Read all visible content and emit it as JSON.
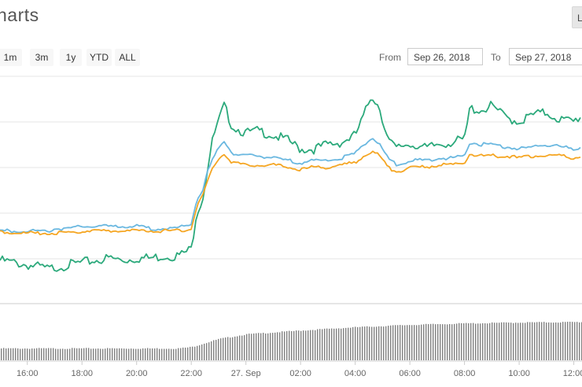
{
  "header": {
    "title": "harts",
    "corner_button": "Li"
  },
  "range_buttons": [
    "1m",
    "3m",
    "1y",
    "YTD",
    "ALL"
  ],
  "date_range": {
    "from_label": "From",
    "from_value": "Sep 26, 2018",
    "to_label": "To",
    "to_value": "Sep 27, 2018"
  },
  "colors": {
    "green": "#2ba97b",
    "blue": "#6bb8e0",
    "orange": "#f5a623",
    "volume": "#808080",
    "grid": "#e6e6e6"
  },
  "chart_data": {
    "type": "line",
    "title": "",
    "xlabel": "",
    "ylabel": "",
    "x_tick_labels": [
      "16:00",
      "18:00",
      "20:00",
      "22:00",
      "27. Sep",
      "02:00",
      "04:00",
      "06:00",
      "08:00",
      "10:00",
      "12:00"
    ],
    "x_hours": [
      -6,
      -4,
      -2,
      0,
      2,
      4,
      6,
      8,
      10,
      12,
      14
    ],
    "xlim_hours": [
      -7.0,
      14.3
    ],
    "ylim": [
      0,
      100
    ],
    "grid": true,
    "series": [
      {
        "color_key": "green",
        "points": [
          [
            -7,
            19
          ],
          [
            -6.5,
            18
          ],
          [
            -6,
            17
          ],
          [
            -5.5,
            16
          ],
          [
            -5.2,
            15
          ],
          [
            -5,
            16
          ],
          [
            -4.5,
            17
          ],
          [
            -4,
            18
          ],
          [
            -3.5,
            19
          ],
          [
            -3,
            20
          ],
          [
            -2.5,
            19
          ],
          [
            -2,
            20
          ],
          [
            -1.5,
            20
          ],
          [
            -1,
            21
          ],
          [
            -0.5,
            21
          ],
          [
            -0.3,
            22
          ],
          [
            0,
            24
          ],
          [
            0.2,
            41
          ],
          [
            0.4,
            45
          ],
          [
            0.6,
            60
          ],
          [
            0.8,
            73
          ],
          [
            1.0,
            80
          ],
          [
            1.2,
            87
          ],
          [
            1.5,
            78
          ],
          [
            2,
            75
          ],
          [
            2.5,
            76
          ],
          [
            3,
            74
          ],
          [
            3.5,
            72
          ],
          [
            4,
            68
          ],
          [
            4.5,
            68
          ],
          [
            5,
            70
          ],
          [
            5.5,
            71
          ],
          [
            6,
            74
          ],
          [
            6.3,
            82
          ],
          [
            6.6,
            92
          ],
          [
            6.9,
            86
          ],
          [
            7.2,
            72
          ],
          [
            7.5,
            68
          ],
          [
            7.8,
            70
          ],
          [
            8.2,
            70
          ],
          [
            8.6,
            68
          ],
          [
            9,
            70
          ],
          [
            9.5,
            71
          ],
          [
            10,
            72
          ],
          [
            10.2,
            86
          ],
          [
            10.6,
            85
          ],
          [
            11,
            87
          ],
          [
            11.5,
            82
          ],
          [
            12,
            80
          ],
          [
            12.5,
            83
          ],
          [
            13,
            84
          ],
          [
            13.5,
            81
          ],
          [
            14,
            80
          ],
          [
            14.3,
            83
          ]
        ]
      },
      {
        "color_key": "blue",
        "points": [
          [
            -7,
            32
          ],
          [
            -6.5,
            32
          ],
          [
            -6,
            32
          ],
          [
            -5.5,
            32
          ],
          [
            -5.2,
            32
          ],
          [
            -5,
            33
          ],
          [
            -4.5,
            33
          ],
          [
            -4,
            34
          ],
          [
            -3.5,
            34
          ],
          [
            -3,
            34
          ],
          [
            -2.5,
            34
          ],
          [
            -2,
            34
          ],
          [
            -1.5,
            33
          ],
          [
            -1,
            33
          ],
          [
            -0.5,
            33
          ],
          [
            -0.3,
            34
          ],
          [
            0,
            35
          ],
          [
            0.2,
            46
          ],
          [
            0.4,
            49
          ],
          [
            0.6,
            58
          ],
          [
            0.8,
            64
          ],
          [
            1.0,
            68
          ],
          [
            1.2,
            72
          ],
          [
            1.5,
            66
          ],
          [
            2,
            65
          ],
          [
            2.5,
            65
          ],
          [
            3,
            64
          ],
          [
            3.5,
            63
          ],
          [
            4,
            62
          ],
          [
            4.5,
            63
          ],
          [
            5,
            63
          ],
          [
            5.5,
            64
          ],
          [
            6,
            66
          ],
          [
            6.3,
            70
          ],
          [
            6.6,
            73
          ],
          [
            6.9,
            70
          ],
          [
            7.2,
            64
          ],
          [
            7.5,
            61
          ],
          [
            7.8,
            62
          ],
          [
            8.2,
            63
          ],
          [
            8.6,
            63
          ],
          [
            9,
            64
          ],
          [
            9.5,
            64
          ],
          [
            10,
            65
          ],
          [
            10.2,
            71
          ],
          [
            10.6,
            70
          ],
          [
            11,
            70
          ],
          [
            11.5,
            69
          ],
          [
            12,
            68
          ],
          [
            12.5,
            69
          ],
          [
            13,
            70
          ],
          [
            13.5,
            69
          ],
          [
            14,
            68
          ],
          [
            14.3,
            69
          ]
        ]
      },
      {
        "color_key": "orange",
        "points": [
          [
            -7,
            32
          ],
          [
            -6.5,
            31
          ],
          [
            -6,
            31
          ],
          [
            -5.5,
            31
          ],
          [
            -5.2,
            31
          ],
          [
            -5,
            31
          ],
          [
            -4.5,
            31
          ],
          [
            -4,
            32
          ],
          [
            -3.5,
            32
          ],
          [
            -3,
            32
          ],
          [
            -2.5,
            32
          ],
          [
            -2,
            32
          ],
          [
            -1.5,
            32
          ],
          [
            -1,
            32
          ],
          [
            -0.5,
            32
          ],
          [
            -0.3,
            32
          ],
          [
            0,
            33
          ],
          [
            0.2,
            43
          ],
          [
            0.4,
            47
          ],
          [
            0.6,
            54
          ],
          [
            0.8,
            60
          ],
          [
            1.0,
            64
          ],
          [
            1.2,
            66
          ],
          [
            1.5,
            62
          ],
          [
            2,
            61
          ],
          [
            2.5,
            61
          ],
          [
            3,
            61
          ],
          [
            3.5,
            60
          ],
          [
            4,
            59
          ],
          [
            4.5,
            60
          ],
          [
            5,
            60
          ],
          [
            5.5,
            61
          ],
          [
            6,
            62
          ],
          [
            6.3,
            65
          ],
          [
            6.6,
            67
          ],
          [
            6.9,
            65
          ],
          [
            7.2,
            60
          ],
          [
            7.5,
            58
          ],
          [
            7.8,
            59
          ],
          [
            8.2,
            60
          ],
          [
            8.6,
            60
          ],
          [
            9,
            61
          ],
          [
            9.5,
            61
          ],
          [
            10,
            62
          ],
          [
            10.2,
            66
          ],
          [
            10.6,
            65
          ],
          [
            11,
            65
          ],
          [
            11.5,
            65
          ],
          [
            12,
            64
          ],
          [
            12.5,
            65
          ],
          [
            13,
            65
          ],
          [
            13.5,
            65
          ],
          [
            14,
            64
          ],
          [
            14.3,
            65
          ]
        ]
      }
    ],
    "volume": {
      "color_key": "volume",
      "ylim": [
        0,
        100
      ],
      "points": [
        [
          -7,
          25
        ],
        [
          -0.5,
          25
        ],
        [
          0,
          28
        ],
        [
          1,
          45
        ],
        [
          2,
          55
        ],
        [
          4,
          63
        ],
        [
          6,
          70
        ],
        [
          8,
          75
        ],
        [
          10,
          78
        ],
        [
          12,
          80
        ],
        [
          14.3,
          81
        ]
      ]
    }
  }
}
